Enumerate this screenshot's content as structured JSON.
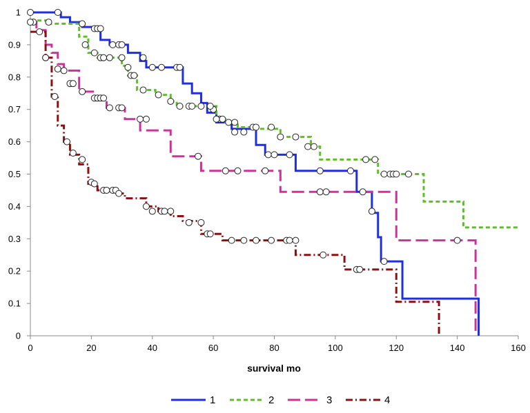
{
  "chart_data": {
    "type": "line",
    "subtype": "kaplan-meier step curves",
    "title": "",
    "xlabel": "survival mo",
    "ylabel": "",
    "xlim": [
      0,
      160
    ],
    "ylim": [
      0,
      1
    ],
    "xticks": [
      0,
      20,
      40,
      60,
      80,
      100,
      120,
      140,
      160
    ],
    "xtick_labels": [
      "0",
      "20",
      "40",
      "60",
      "80",
      "100",
      "120",
      "140",
      "160"
    ],
    "yticks": [
      0,
      0.1,
      0.2,
      0.3,
      0.4,
      0.5,
      0.6,
      0.7,
      0.8,
      0.9,
      1
    ],
    "ytick_labels": [
      "0",
      "0.1",
      "0.2",
      "0.3",
      "0.4",
      "0.5",
      "0.6",
      "0.7",
      "0.8",
      "0.9",
      "1"
    ],
    "grid": false,
    "legend_position": "bottom",
    "series": [
      {
        "name": "1",
        "color": "#1f2fe0",
        "dash": "solid",
        "steps": [
          [
            0,
            1
          ],
          [
            10,
            0.985
          ],
          [
            13,
            0.97
          ],
          [
            17,
            0.955
          ],
          [
            23,
            0.915
          ],
          [
            26,
            0.9
          ],
          [
            32,
            0.875
          ],
          [
            36,
            0.85
          ],
          [
            38,
            0.83
          ],
          [
            50,
            0.78
          ],
          [
            53,
            0.75
          ],
          [
            56,
            0.72
          ],
          [
            58,
            0.69
          ],
          [
            61,
            0.66
          ],
          [
            66,
            0.64
          ],
          [
            74,
            0.59
          ],
          [
            77,
            0.56
          ],
          [
            87,
            0.51
          ],
          [
            107,
            0.445
          ],
          [
            112,
            0.38
          ],
          [
            114,
            0.305
          ],
          [
            115,
            0.23
          ],
          [
            122,
            0.115
          ],
          [
            147,
            0
          ]
        ],
        "censor": [
          [
            0,
            1
          ],
          [
            9,
            1
          ],
          [
            21,
            0.95
          ],
          [
            22,
            0.95
          ],
          [
            23,
            0.95
          ],
          [
            27,
            0.9
          ],
          [
            29,
            0.9
          ],
          [
            30,
            0.9
          ],
          [
            37,
            0.86
          ],
          [
            40,
            0.83
          ],
          [
            43,
            0.83
          ],
          [
            48,
            0.83
          ],
          [
            49,
            0.83
          ],
          [
            60,
            0.7
          ],
          [
            62,
            0.67
          ],
          [
            63,
            0.67
          ],
          [
            67,
            0.63
          ],
          [
            70,
            0.63
          ],
          [
            78,
            0.56
          ],
          [
            80,
            0.56
          ],
          [
            85,
            0.56
          ],
          [
            95,
            0.51
          ],
          [
            105,
            0.51
          ],
          [
            109,
            0.445
          ],
          [
            112,
            0.385
          ],
          [
            116,
            0.23
          ]
        ]
      },
      {
        "name": "2",
        "color": "#5cbf26",
        "dash": "dashed",
        "steps": [
          [
            0,
            0.975
          ],
          [
            6,
            0.965
          ],
          [
            16,
            0.925
          ],
          [
            19,
            0.875
          ],
          [
            22,
            0.86
          ],
          [
            30,
            0.835
          ],
          [
            32,
            0.805
          ],
          [
            35,
            0.76
          ],
          [
            41,
            0.745
          ],
          [
            46,
            0.725
          ],
          [
            48,
            0.71
          ],
          [
            61,
            0.67
          ],
          [
            64,
            0.66
          ],
          [
            68,
            0.645
          ],
          [
            75,
            0.64
          ],
          [
            82,
            0.615
          ],
          [
            92,
            0.585
          ],
          [
            95,
            0.545
          ],
          [
            114,
            0.5
          ],
          [
            129,
            0.415
          ],
          [
            142,
            0.335
          ],
          [
            160,
            0.335
          ]
        ],
        "censor": [
          [
            1,
            0.97
          ],
          [
            6,
            0.97
          ],
          [
            17,
            0.965
          ],
          [
            18,
            0.9
          ],
          [
            21,
            0.875
          ],
          [
            23,
            0.86
          ],
          [
            24,
            0.86
          ],
          [
            26,
            0.86
          ],
          [
            30,
            0.86
          ],
          [
            32,
            0.83
          ],
          [
            33,
            0.805
          ],
          [
            34,
            0.805
          ],
          [
            37,
            0.76
          ],
          [
            42,
            0.745
          ],
          [
            46,
            0.725
          ],
          [
            49,
            0.71
          ],
          [
            52,
            0.71
          ],
          [
            53,
            0.71
          ],
          [
            56,
            0.71
          ],
          [
            59,
            0.71
          ],
          [
            61,
            0.67
          ],
          [
            65,
            0.66
          ],
          [
            67,
            0.66
          ],
          [
            73,
            0.645
          ],
          [
            74,
            0.645
          ],
          [
            79,
            0.645
          ],
          [
            82,
            0.615
          ],
          [
            87,
            0.615
          ],
          [
            91,
            0.585
          ],
          [
            93,
            0.585
          ],
          [
            110,
            0.545
          ],
          [
            113,
            0.545
          ],
          [
            116,
            0.5
          ],
          [
            118,
            0.5
          ],
          [
            119,
            0.5
          ],
          [
            120,
            0.5
          ],
          [
            124,
            0.5
          ]
        ]
      },
      {
        "name": "3",
        "color": "#cc3399",
        "dash": "longdash",
        "steps": [
          [
            0,
            0.97
          ],
          [
            2,
            0.945
          ],
          [
            5,
            0.9
          ],
          [
            7,
            0.875
          ],
          [
            9,
            0.84
          ],
          [
            11,
            0.82
          ],
          [
            16,
            0.755
          ],
          [
            21,
            0.73
          ],
          [
            25,
            0.705
          ],
          [
            31,
            0.67
          ],
          [
            36,
            0.635
          ],
          [
            46,
            0.555
          ],
          [
            56,
            0.51
          ],
          [
            82,
            0.445
          ],
          [
            120,
            0.295
          ],
          [
            146,
            0
          ]
        ],
        "censor": [
          [
            0,
            0.97
          ],
          [
            5,
            0.86
          ],
          [
            9,
            0.825
          ],
          [
            11,
            0.82
          ],
          [
            13,
            0.78
          ],
          [
            14,
            0.78
          ],
          [
            17,
            0.755
          ],
          [
            21,
            0.735
          ],
          [
            22,
            0.735
          ],
          [
            23,
            0.735
          ],
          [
            24,
            0.735
          ],
          [
            26,
            0.705
          ],
          [
            29,
            0.705
          ],
          [
            30,
            0.705
          ],
          [
            36,
            0.67
          ],
          [
            38,
            0.67
          ],
          [
            55,
            0.555
          ],
          [
            64,
            0.51
          ],
          [
            68,
            0.51
          ],
          [
            77,
            0.51
          ],
          [
            95,
            0.445
          ],
          [
            97,
            0.445
          ],
          [
            140,
            0.295
          ]
        ]
      },
      {
        "name": "4",
        "color": "#8b1010",
        "dash": "dashdot",
        "steps": [
          [
            0,
            0.94
          ],
          [
            5,
            0.86
          ],
          [
            7,
            0.74
          ],
          [
            9,
            0.65
          ],
          [
            11,
            0.6
          ],
          [
            13,
            0.56
          ],
          [
            16,
            0.53
          ],
          [
            19,
            0.47
          ],
          [
            22,
            0.45
          ],
          [
            28,
            0.44
          ],
          [
            31,
            0.425
          ],
          [
            38,
            0.4
          ],
          [
            42,
            0.385
          ],
          [
            46,
            0.37
          ],
          [
            50,
            0.355
          ],
          [
            56,
            0.315
          ],
          [
            63,
            0.295
          ],
          [
            87,
            0.25
          ],
          [
            103,
            0.205
          ],
          [
            120,
            0.105
          ],
          [
            134,
            0
          ]
        ],
        "censor": [
          [
            3,
            0.94
          ],
          [
            5,
            0.86
          ],
          [
            8,
            0.74
          ],
          [
            12,
            0.6
          ],
          [
            14,
            0.565
          ],
          [
            17,
            0.545
          ],
          [
            20,
            0.475
          ],
          [
            21,
            0.47
          ],
          [
            24,
            0.45
          ],
          [
            25,
            0.45
          ],
          [
            27,
            0.45
          ],
          [
            28,
            0.45
          ],
          [
            29,
            0.44
          ],
          [
            38,
            0.4
          ],
          [
            40,
            0.385
          ],
          [
            43,
            0.385
          ],
          [
            44,
            0.385
          ],
          [
            46,
            0.385
          ],
          [
            52,
            0.35
          ],
          [
            56,
            0.35
          ],
          [
            58,
            0.315
          ],
          [
            59,
            0.315
          ],
          [
            66,
            0.295
          ],
          [
            70,
            0.295
          ],
          [
            74,
            0.295
          ],
          [
            79,
            0.295
          ],
          [
            84,
            0.295
          ],
          [
            85,
            0.295
          ],
          [
            87,
            0.295
          ],
          [
            96,
            0.25
          ],
          [
            107,
            0.205
          ],
          [
            108,
            0.205
          ]
        ]
      }
    ]
  }
}
